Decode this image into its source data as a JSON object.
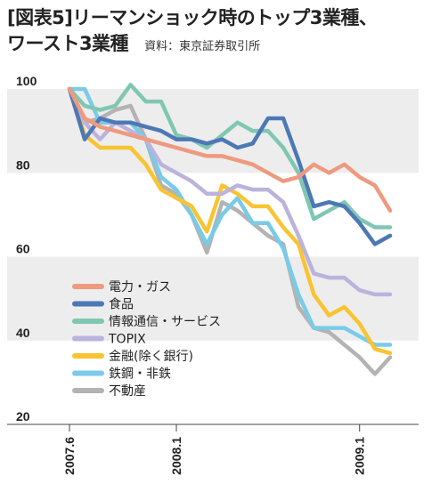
{
  "title": {
    "line1": "[図表5]リーマンショック時のトップ3業種、",
    "line2": "ワースト3業種",
    "source": "資料：東京証券取引所"
  },
  "chart_data": {
    "type": "line",
    "x": [
      "2007.6",
      "2007.7",
      "2007.8",
      "2007.9",
      "2007.10",
      "2007.11",
      "2007.12",
      "2008.1",
      "2008.2",
      "2008.3",
      "2008.4",
      "2008.5",
      "2008.6",
      "2008.7",
      "2008.8",
      "2008.9",
      "2008.10",
      "2008.11",
      "2008.12",
      "2009.1",
      "2009.2",
      "2009.3"
    ],
    "xticks": [
      "2007.6",
      "2008.1",
      "2009.1"
    ],
    "ylim": [
      20,
      100
    ],
    "yticks": [
      100,
      80,
      60,
      40,
      20
    ],
    "series": [
      {
        "name": "電力・ガス",
        "color": "#ee9a7f",
        "values": [
          100,
          93,
          91,
          90,
          89,
          88,
          87,
          86,
          85,
          84,
          84,
          83,
          82,
          80,
          78,
          79,
          82,
          80,
          82,
          79,
          77,
          71
        ]
      },
      {
        "name": "食品",
        "color": "#4d78b5",
        "values": [
          100,
          88,
          93,
          92,
          92,
          91,
          90,
          88,
          88,
          87,
          88,
          86,
          87,
          93,
          93,
          83,
          72,
          73,
          72,
          68,
          63,
          65
        ]
      },
      {
        "name": "情報通信・サービス",
        "color": "#80c7b1",
        "values": [
          100,
          96,
          95,
          96,
          101,
          97,
          97,
          89,
          88,
          86,
          89,
          92,
          90,
          90,
          86,
          80,
          69,
          71,
          73,
          69,
          67,
          67
        ]
      },
      {
        "name": "TOPIX",
        "color": "#bcb3dc",
        "values": [
          100,
          92,
          88,
          92,
          90,
          88,
          82,
          80,
          78,
          75,
          75,
          77,
          76,
          76,
          73,
          65,
          56,
          55,
          55,
          52,
          51,
          51
        ]
      },
      {
        "name": "金融(除く銀行)",
        "color": "#f8c431",
        "values": [
          100,
          89,
          86,
          86,
          86,
          82,
          76,
          74,
          72,
          66,
          77,
          75,
          72,
          72,
          67,
          63,
          51,
          46,
          48,
          44,
          38,
          37
        ]
      },
      {
        "name": "鉄鋼・非鉄",
        "color": "#79cbe8",
        "values": [
          100,
          100,
          92,
          92,
          92,
          88,
          79,
          76,
          70,
          63,
          70,
          74,
          68,
          68,
          62,
          51,
          43,
          43,
          43,
          41,
          39,
          39
        ]
      },
      {
        "name": "不動産",
        "color": "#b3b3b3",
        "values": [
          100,
          92,
          93,
          95,
          96,
          88,
          77,
          75,
          70,
          61,
          73,
          71,
          68,
          65,
          63,
          48,
          43,
          42,
          39,
          36,
          32,
          36
        ]
      }
    ]
  }
}
